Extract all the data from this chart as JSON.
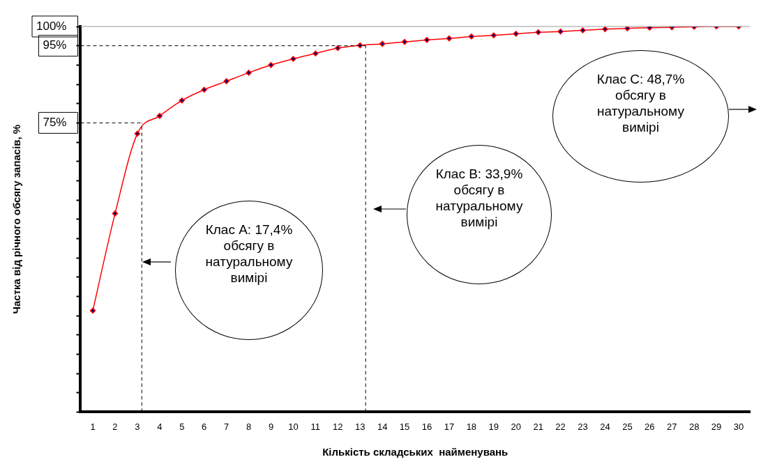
{
  "chart_data": {
    "type": "line",
    "xlabel": "Кількість складських  найменувань",
    "ylabel": "Частка від річного обсягу запасів, %",
    "x": [
      1,
      2,
      3,
      4,
      5,
      6,
      7,
      8,
      9,
      10,
      11,
      12,
      13,
      14,
      15,
      16,
      17,
      18,
      19,
      20,
      21,
      22,
      23,
      24,
      25,
      26,
      27,
      28,
      29,
      30
    ],
    "xlim": [
      0.45,
      30.5
    ],
    "xticks": [
      1,
      2,
      3,
      4,
      5,
      6,
      7,
      8,
      9,
      10,
      11,
      12,
      13,
      14,
      15,
      16,
      17,
      18,
      19,
      20,
      21,
      22,
      23,
      24,
      25,
      26,
      27,
      28,
      29,
      30
    ],
    "ylim": [
      0,
      100
    ],
    "yticks": [
      {
        "value": 0,
        "label": null
      },
      {
        "value": 5,
        "label": null
      },
      {
        "value": 10,
        "label": null
      },
      {
        "value": 15,
        "label": null
      },
      {
        "value": 20,
        "label": null
      },
      {
        "value": 25,
        "label": null
      },
      {
        "value": 30,
        "label": null
      },
      {
        "value": 35,
        "label": null
      },
      {
        "value": 40,
        "label": null
      },
      {
        "value": 45,
        "label": null
      },
      {
        "value": 50,
        "label": null
      },
      {
        "value": 55,
        "label": null
      },
      {
        "value": 60,
        "label": null
      },
      {
        "value": 65,
        "label": null
      },
      {
        "value": 70,
        "label": null
      },
      {
        "value": 75,
        "label": "75%"
      },
      {
        "value": 80,
        "label": null
      },
      {
        "value": 85,
        "label": null
      },
      {
        "value": 90,
        "label": null
      },
      {
        "value": 95,
        "label": "95%"
      },
      {
        "value": 100,
        "label": "100%"
      }
    ],
    "series": [
      {
        "color": "#ff0000",
        "values": [
          26.3,
          51.5,
          72.2,
          76.8,
          80.8,
          83.6,
          85.8,
          88.0,
          90.0,
          91.6,
          93.0,
          94.4,
          95.1,
          95.5,
          96.0,
          96.5,
          96.9,
          97.4,
          97.7,
          98.1,
          98.5,
          98.7,
          99.0,
          99.3,
          99.5,
          99.7,
          99.8,
          99.9,
          100,
          100
        ]
      }
    ],
    "marker": "diamond",
    "grid": false,
    "legend": false,
    "ref_lines": [
      {
        "axis": "y",
        "value": 75,
        "line_style": "dashed",
        "color": "#000000"
      },
      {
        "axis": "x",
        "value": 3.2,
        "line_style": "dashed",
        "color": "#000000"
      },
      {
        "axis": "y",
        "value": 95,
        "line_style": "dashed",
        "color": "#000000"
      },
      {
        "axis": "x",
        "value": 13.25,
        "line_style": "dashed",
        "color": "#000000"
      }
    ],
    "annotations": [
      "Клас А: 17,4% обсягу в натуральному вимірі",
      "Клас В: 33,9% обсягу в натуральному вимірі",
      "Клас С: 48,7% обсягу в натуральному вимірі"
    ]
  }
}
